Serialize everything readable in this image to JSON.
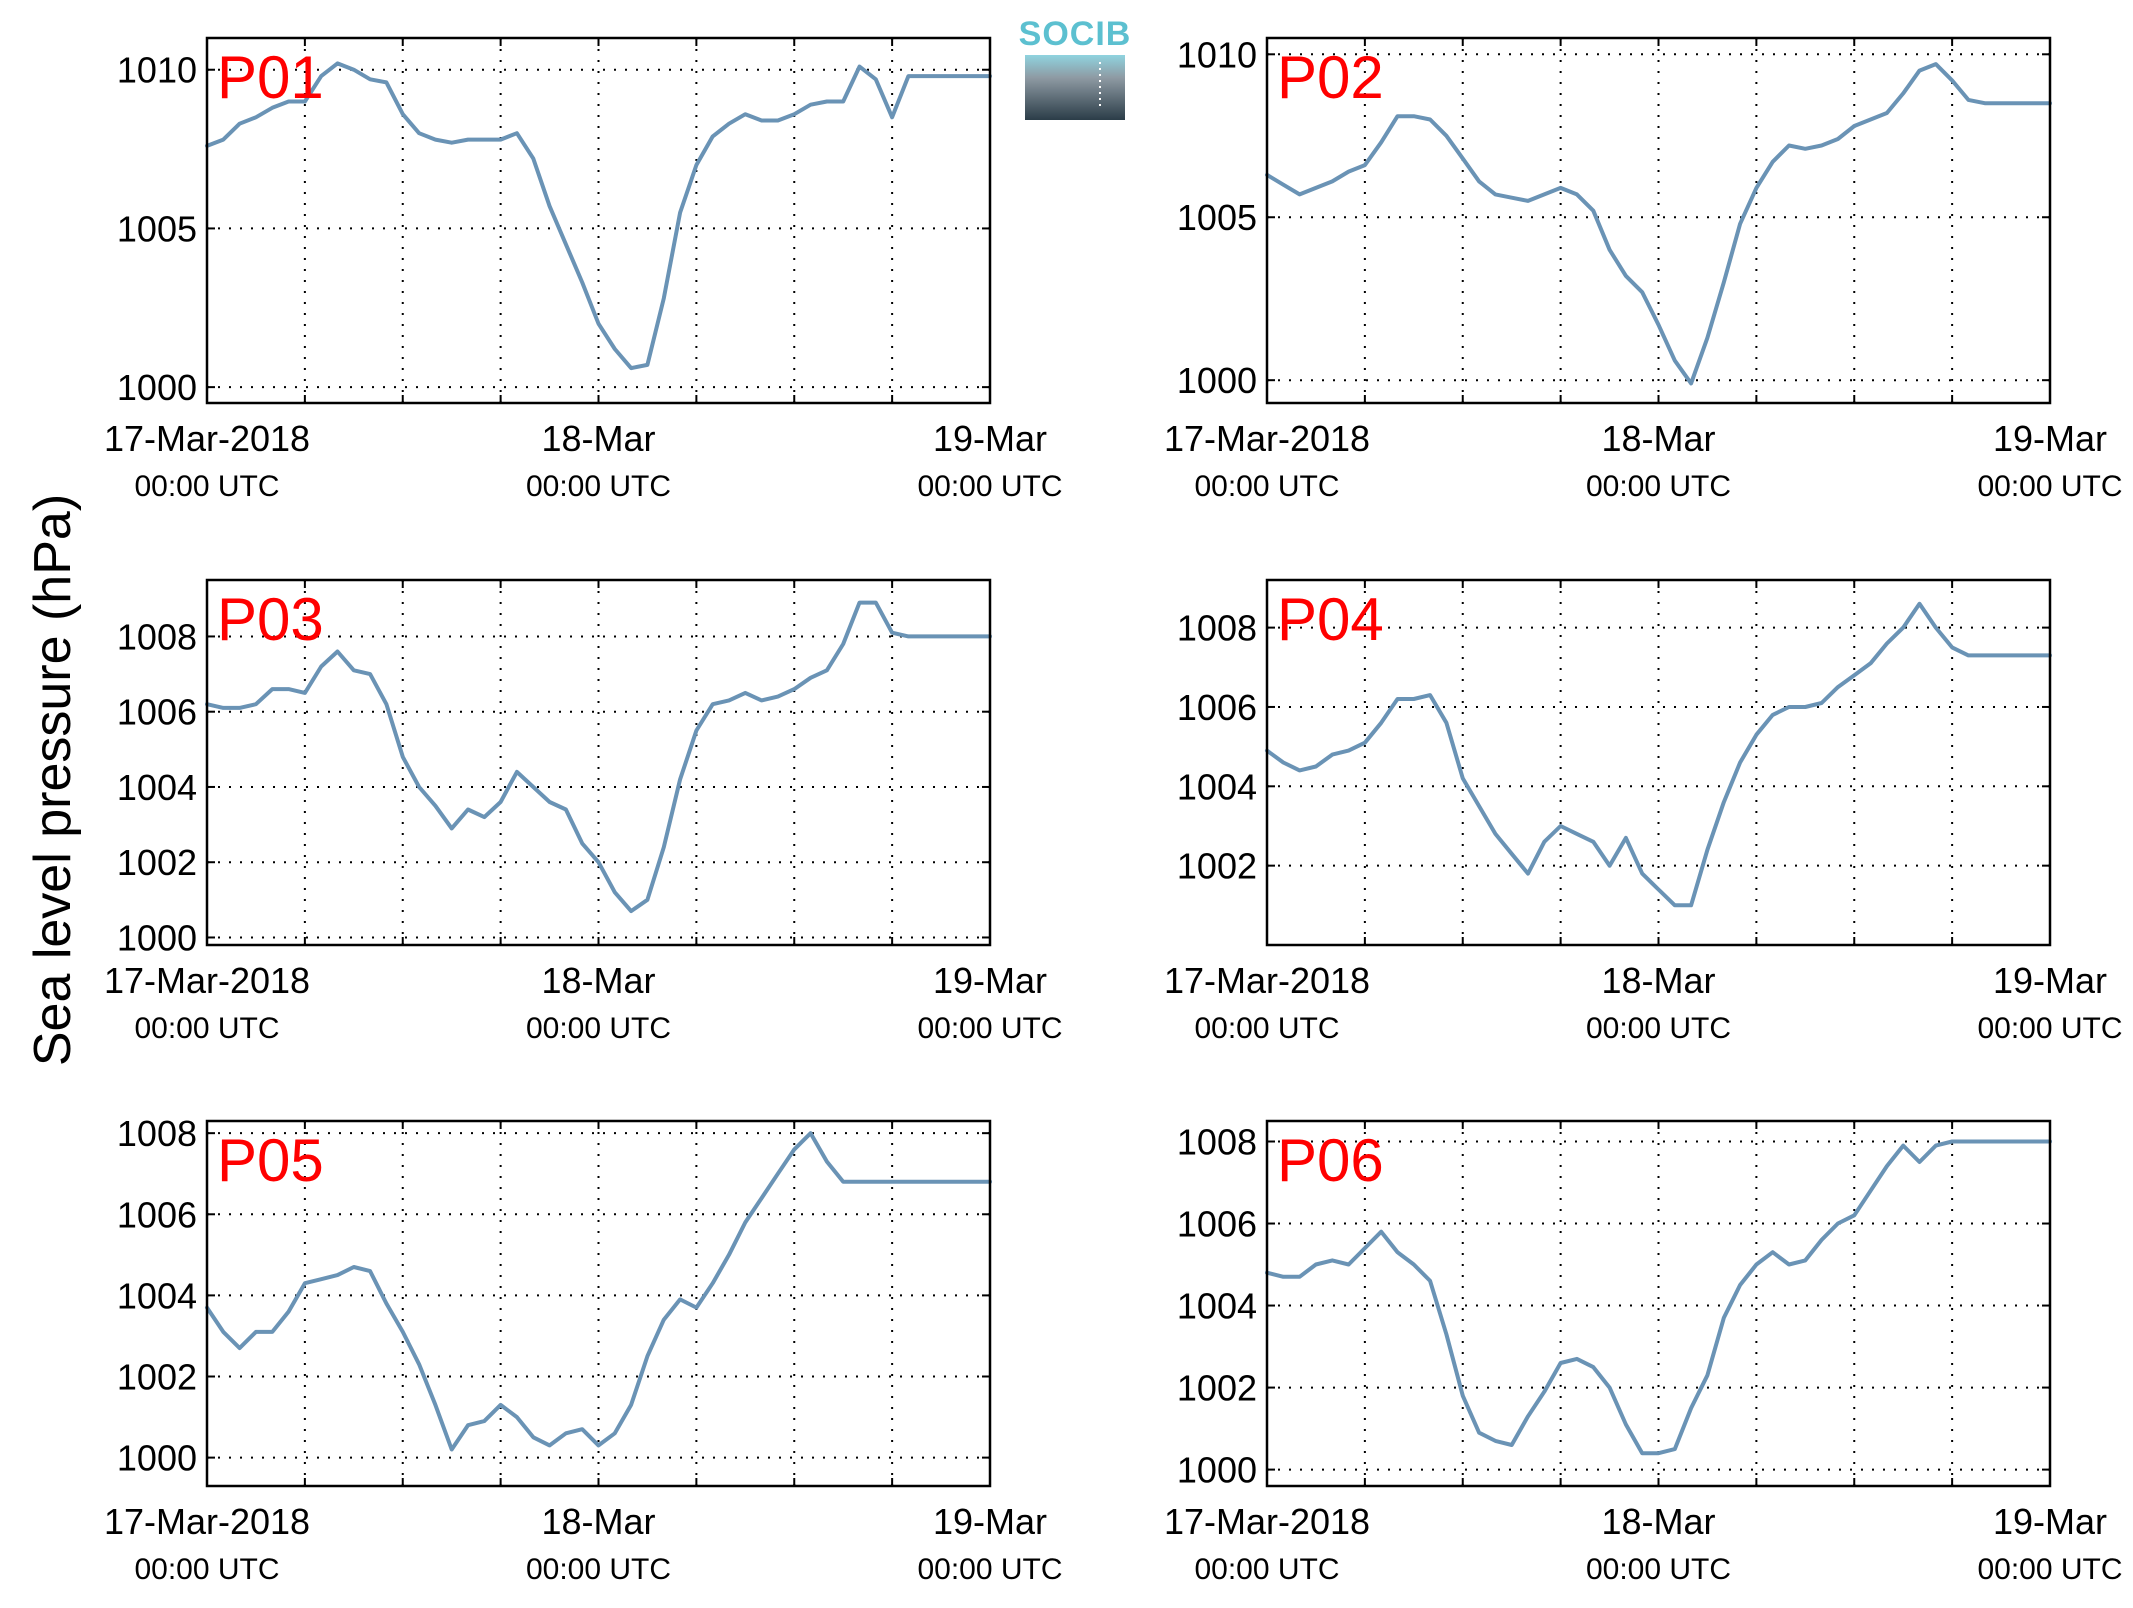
{
  "figure": {
    "ylabel": "Sea level pressure (hPa)",
    "logo_text": "SOCIB",
    "label_color": "#ff0000",
    "line_color": "#6a93b5",
    "x_ticks": [
      {
        "label": "17-Mar-2018",
        "sub": "00:00 UTC",
        "t": 0
      },
      {
        "label": "18-Mar",
        "sub": "00:00 UTC",
        "t": 24
      },
      {
        "label": "19-Mar",
        "sub": "00:00 UTC",
        "t": 48
      }
    ]
  },
  "chart_data": [
    {
      "type": "line",
      "name": "P01",
      "xunit": "hours since 17-Mar-2018 00:00 UTC",
      "xlim": [
        0,
        48
      ],
      "ylim": [
        999.5,
        1011.0
      ],
      "yticks": [
        1000,
        1005,
        1010
      ],
      "ytick_labels": [
        "1000",
        "1005",
        "1010"
      ],
      "grid": true,
      "x": [
        0,
        1,
        2,
        3,
        4,
        5,
        6,
        7,
        8,
        9,
        10,
        11,
        12,
        13,
        14,
        15,
        16,
        17,
        18,
        19,
        20,
        21,
        22,
        23,
        24,
        25,
        26,
        27,
        28,
        29,
        30,
        31,
        32,
        33,
        34,
        35,
        36,
        37,
        38,
        39,
        40,
        41,
        42,
        43,
        44,
        45,
        46,
        47,
        48
      ],
      "y": [
        1007.6,
        1007.8,
        1008.3,
        1008.5,
        1008.8,
        1009.0,
        1009.0,
        1009.8,
        1010.2,
        1010.0,
        1009.7,
        1009.6,
        1008.6,
        1008.0,
        1007.8,
        1007.7,
        1007.8,
        1007.8,
        1007.8,
        1008.0,
        1007.2,
        1005.7,
        1004.5,
        1003.3,
        1002.0,
        1001.2,
        1000.6,
        1000.7,
        1002.8,
        1005.5,
        1007.0,
        1007.9,
        1008.3,
        1008.6,
        1008.4,
        1008.4,
        1008.6,
        1008.9,
        1009.0,
        1009.0,
        1010.1,
        1009.7,
        1008.5,
        1009.8,
        1009.8,
        1009.8,
        1009.8,
        1009.8,
        1009.8
      ]
    },
    {
      "type": "line",
      "name": "P02",
      "xunit": "hours since 17-Mar-2018 00:00 UTC",
      "xlim": [
        0,
        48
      ],
      "ylim": [
        999.3,
        1010.5
      ],
      "yticks": [
        1000,
        1005,
        1010
      ],
      "ytick_labels": [
        "1000",
        "1005",
        "1010"
      ],
      "grid": true,
      "x": [
        0,
        1,
        2,
        3,
        4,
        5,
        6,
        7,
        8,
        9,
        10,
        11,
        12,
        13,
        14,
        15,
        16,
        17,
        18,
        19,
        20,
        21,
        22,
        23,
        24,
        25,
        26,
        27,
        28,
        29,
        30,
        31,
        32,
        33,
        34,
        35,
        36,
        37,
        38,
        39,
        40,
        41,
        42,
        43,
        44,
        45,
        46,
        47,
        48
      ],
      "y": [
        1006.3,
        1006.0,
        1005.7,
        1005.9,
        1006.1,
        1006.4,
        1006.6,
        1007.3,
        1008.1,
        1008.1,
        1008.0,
        1007.5,
        1006.8,
        1006.1,
        1005.7,
        1005.6,
        1005.5,
        1005.7,
        1005.9,
        1005.7,
        1005.2,
        1004.0,
        1003.2,
        1002.7,
        1001.7,
        1000.6,
        999.9,
        1001.3,
        1003.0,
        1004.8,
        1005.9,
        1006.7,
        1007.2,
        1007.1,
        1007.2,
        1007.4,
        1007.8,
        1008.0,
        1008.2,
        1008.8,
        1009.5,
        1009.7,
        1009.2,
        1008.6,
        1008.5,
        1008.5,
        1008.5,
        1008.5,
        1008.5
      ]
    },
    {
      "type": "line",
      "name": "P03",
      "xunit": "hours since 17-Mar-2018 00:00 UTC",
      "xlim": [
        0,
        48
      ],
      "ylim": [
        999.8,
        1009.5
      ],
      "yticks": [
        1000,
        1002,
        1004,
        1006,
        1008
      ],
      "ytick_labels": [
        "1000",
        "1002",
        "1004",
        "1006",
        "1008"
      ],
      "grid": true,
      "x": [
        0,
        1,
        2,
        3,
        4,
        5,
        6,
        7,
        8,
        9,
        10,
        11,
        12,
        13,
        14,
        15,
        16,
        17,
        18,
        19,
        20,
        21,
        22,
        23,
        24,
        25,
        26,
        27,
        28,
        29,
        30,
        31,
        32,
        33,
        34,
        35,
        36,
        37,
        38,
        39,
        40,
        41,
        42,
        43,
        44,
        45,
        46,
        47,
        48
      ],
      "y": [
        1006.2,
        1006.1,
        1006.1,
        1006.2,
        1006.6,
        1006.6,
        1006.5,
        1007.2,
        1007.6,
        1007.1,
        1007.0,
        1006.2,
        1004.8,
        1004.0,
        1003.5,
        1002.9,
        1003.4,
        1003.2,
        1003.6,
        1004.4,
        1004.0,
        1003.6,
        1003.4,
        1002.5,
        1002.0,
        1001.2,
        1000.7,
        1001.0,
        1002.4,
        1004.2,
        1005.5,
        1006.2,
        1006.3,
        1006.5,
        1006.3,
        1006.4,
        1006.6,
        1006.9,
        1007.1,
        1007.8,
        1008.9,
        1008.9,
        1008.1,
        1008.0,
        1008.0,
        1008.0,
        1008.0,
        1008.0,
        1008.0
      ]
    },
    {
      "type": "line",
      "name": "P04",
      "xunit": "hours since 17-Mar-2018 00:00 UTC",
      "xlim": [
        0,
        48
      ],
      "ylim": [
        1000.0,
        1009.2
      ],
      "yticks": [
        1002,
        1004,
        1006,
        1008
      ],
      "ytick_labels": [
        "1002",
        "1004",
        "1006",
        "1008"
      ],
      "grid": true,
      "x": [
        0,
        1,
        2,
        3,
        4,
        5,
        6,
        7,
        8,
        9,
        10,
        11,
        12,
        13,
        14,
        15,
        16,
        17,
        18,
        19,
        20,
        21,
        22,
        23,
        24,
        25,
        26,
        27,
        28,
        29,
        30,
        31,
        32,
        33,
        34,
        35,
        36,
        37,
        38,
        39,
        40,
        41,
        42,
        43,
        44,
        45,
        46,
        47,
        48
      ],
      "y": [
        1004.9,
        1004.6,
        1004.4,
        1004.5,
        1004.8,
        1004.9,
        1005.1,
        1005.6,
        1006.2,
        1006.2,
        1006.3,
        1005.6,
        1004.2,
        1003.5,
        1002.8,
        1002.3,
        1001.8,
        1002.6,
        1003.0,
        1002.8,
        1002.6,
        1002.0,
        1002.7,
        1001.8,
        1001.4,
        1001.0,
        1001.0,
        1002.4,
        1003.6,
        1004.6,
        1005.3,
        1005.8,
        1006.0,
        1006.0,
        1006.1,
        1006.5,
        1006.8,
        1007.1,
        1007.6,
        1008.0,
        1008.6,
        1008.0,
        1007.5,
        1007.3,
        1007.3,
        1007.3,
        1007.3,
        1007.3,
        1007.3
      ]
    },
    {
      "type": "line",
      "name": "P05",
      "xunit": "hours since 17-Mar-2018 00:00 UTC",
      "xlim": [
        0,
        48
      ],
      "ylim": [
        999.3,
        1008.3
      ],
      "yticks": [
        1000,
        1002,
        1004,
        1006,
        1008
      ],
      "ytick_labels": [
        "1000",
        "1002",
        "1004",
        "1006",
        "1008"
      ],
      "grid": true,
      "x": [
        0,
        1,
        2,
        3,
        4,
        5,
        6,
        7,
        8,
        9,
        10,
        11,
        12,
        13,
        14,
        15,
        16,
        17,
        18,
        19,
        20,
        21,
        22,
        23,
        24,
        25,
        26,
        27,
        28,
        29,
        30,
        31,
        32,
        33,
        34,
        35,
        36,
        37,
        38,
        39,
        40,
        41,
        42,
        43,
        44,
        45,
        46,
        47,
        48
      ],
      "y": [
        1003.7,
        1003.1,
        1002.7,
        1003.1,
        1003.1,
        1003.6,
        1004.3,
        1004.4,
        1004.5,
        1004.7,
        1004.6,
        1003.8,
        1003.1,
        1002.3,
        1001.3,
        1000.2,
        1000.8,
        1000.9,
        1001.3,
        1001.0,
        1000.5,
        1000.3,
        1000.6,
        1000.7,
        1000.3,
        1000.6,
        1001.3,
        1002.5,
        1003.4,
        1003.9,
        1003.7,
        1004.3,
        1005.0,
        1005.8,
        1006.4,
        1007.0,
        1007.6,
        1008.0,
        1007.3,
        1006.8,
        1006.8,
        1006.8,
        1006.8,
        1006.8,
        1006.8,
        1006.8,
        1006.8,
        1006.8,
        1006.8
      ]
    },
    {
      "type": "line",
      "name": "P06",
      "xunit": "hours since 17-Mar-2018 00:00 UTC",
      "xlim": [
        0,
        48
      ],
      "ylim": [
        999.6,
        1008.5
      ],
      "yticks": [
        1000,
        1002,
        1004,
        1006,
        1008
      ],
      "ytick_labels": [
        "1000",
        "1002",
        "1004",
        "1006",
        "1008"
      ],
      "grid": true,
      "x": [
        0,
        1,
        2,
        3,
        4,
        5,
        6,
        7,
        8,
        9,
        10,
        11,
        12,
        13,
        14,
        15,
        16,
        17,
        18,
        19,
        20,
        21,
        22,
        23,
        24,
        25,
        26,
        27,
        28,
        29,
        30,
        31,
        32,
        33,
        34,
        35,
        36,
        37,
        38,
        39,
        40,
        41,
        42,
        43,
        44,
        45,
        46,
        47,
        48
      ],
      "y": [
        1004.8,
        1004.7,
        1004.7,
        1005.0,
        1005.1,
        1005.0,
        1005.4,
        1005.8,
        1005.3,
        1005.0,
        1004.6,
        1003.3,
        1001.8,
        1000.9,
        1000.7,
        1000.6,
        1001.3,
        1001.9,
        1002.6,
        1002.7,
        1002.5,
        1002.0,
        1001.1,
        1000.4,
        1000.4,
        1000.5,
        1001.5,
        1002.3,
        1003.7,
        1004.5,
        1005.0,
        1005.3,
        1005.0,
        1005.1,
        1005.6,
        1006.0,
        1006.2,
        1006.8,
        1007.4,
        1007.9,
        1007.5,
        1007.9,
        1008.0,
        1008.0,
        1008.0,
        1008.0,
        1008.0,
        1008.0,
        1008.0
      ]
    }
  ]
}
